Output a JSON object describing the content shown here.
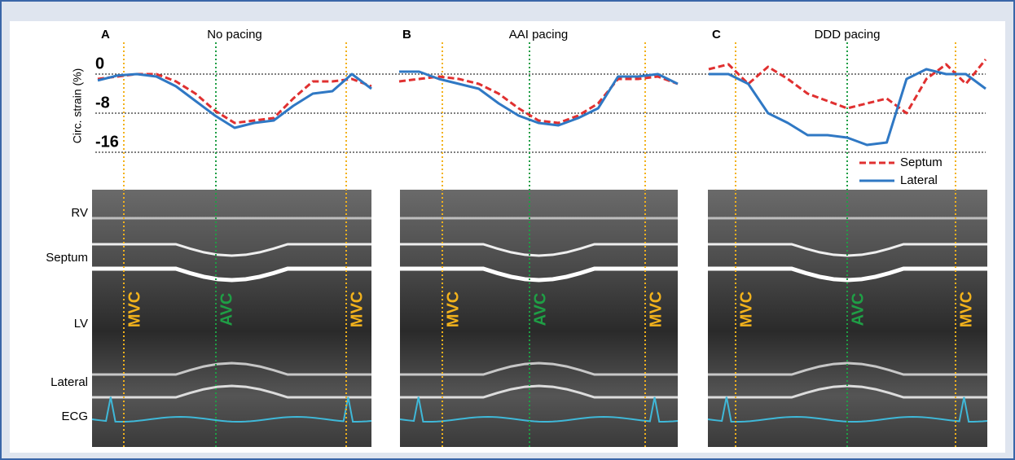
{
  "chart_data": [
    {
      "type": "line",
      "label": "A",
      "title": "No pacing",
      "ylabel": "Circ. strain (%)",
      "ylim": [
        -19,
        6
      ],
      "yticks": [
        0,
        -8,
        -16
      ],
      "grid": true,
      "categories": [
        null,
        null,
        null,
        null,
        null,
        null,
        null,
        null,
        null,
        null,
        null,
        null,
        null,
        null,
        null
      ],
      "series": [
        {
          "name": "Septum",
          "color": "#e03030",
          "values": [
            -1,
            -0.5,
            0,
            0,
            -1.5,
            -4,
            -7.5,
            -10,
            -9.5,
            -9,
            -5,
            -1.5,
            -1.5,
            -1,
            -2.5
          ]
        },
        {
          "name": "Lateral",
          "color": "#2f78c4",
          "values": [
            -1.3,
            -0.3,
            0,
            -0.5,
            -2.5,
            -5.5,
            -8.5,
            -11,
            -10,
            -9.5,
            -6.5,
            -4,
            -3.5,
            0,
            -3
          ]
        }
      ],
      "annotations": [
        {
          "label": "MVC",
          "color": "#f2b21c"
        },
        {
          "label": "AVC",
          "color": "#1f9e45"
        },
        {
          "label": "MVC",
          "color": "#f2b21c"
        }
      ],
      "image_labels": [
        "RV",
        "Septum",
        "LV",
        "Lateral",
        "ECG"
      ]
    },
    {
      "type": "line",
      "label": "B",
      "title": "AAI pacing",
      "ylim": [
        -19,
        6
      ],
      "categories": [
        null,
        null,
        null,
        null,
        null,
        null,
        null,
        null,
        null,
        null,
        null,
        null,
        null,
        null,
        null
      ],
      "series": [
        {
          "name": "Septum",
          "color": "#e03030",
          "values": [
            -1.5,
            -1,
            -0.5,
            -1,
            -2,
            -4,
            -7,
            -9.5,
            -10,
            -8.5,
            -6,
            -1,
            -1,
            -0.5,
            -2
          ]
        },
        {
          "name": "Lateral",
          "color": "#2f78c4",
          "values": [
            0.5,
            0.5,
            -1,
            -2,
            -3,
            -6,
            -8.5,
            -10,
            -10.5,
            -9,
            -7,
            -0.5,
            -0.5,
            0,
            -2
          ]
        }
      ],
      "annotations": [
        {
          "label": "MVC",
          "color": "#f2b21c"
        },
        {
          "label": "AVC",
          "color": "#1f9e45"
        },
        {
          "label": "MVC",
          "color": "#f2b21c"
        }
      ]
    },
    {
      "type": "line",
      "label": "C",
      "title": "DDD pacing",
      "ylim": [
        -19,
        6
      ],
      "legend": "bottom-right",
      "categories": [
        null,
        null,
        null,
        null,
        null,
        null,
        null,
        null,
        null,
        null,
        null,
        null,
        null,
        null,
        null
      ],
      "series": [
        {
          "name": "Septum",
          "color": "#e03030",
          "values": [
            1,
            2,
            -2,
            1.5,
            -1,
            -4,
            -5.5,
            -7,
            -6,
            -5,
            -8,
            -1,
            2,
            -2,
            3
          ]
        },
        {
          "name": "Lateral",
          "color": "#2f78c4",
          "values": [
            0,
            0,
            -2,
            -8,
            -10,
            -12.5,
            -12.5,
            -13,
            -14.5,
            -14,
            -1,
            1,
            0,
            0,
            -3
          ]
        }
      ],
      "annotations": [
        {
          "label": "MVC",
          "color": "#f2b21c"
        },
        {
          "label": "AVC",
          "color": "#1f9e45"
        },
        {
          "label": "MVC",
          "color": "#f2b21c"
        }
      ]
    }
  ]
}
